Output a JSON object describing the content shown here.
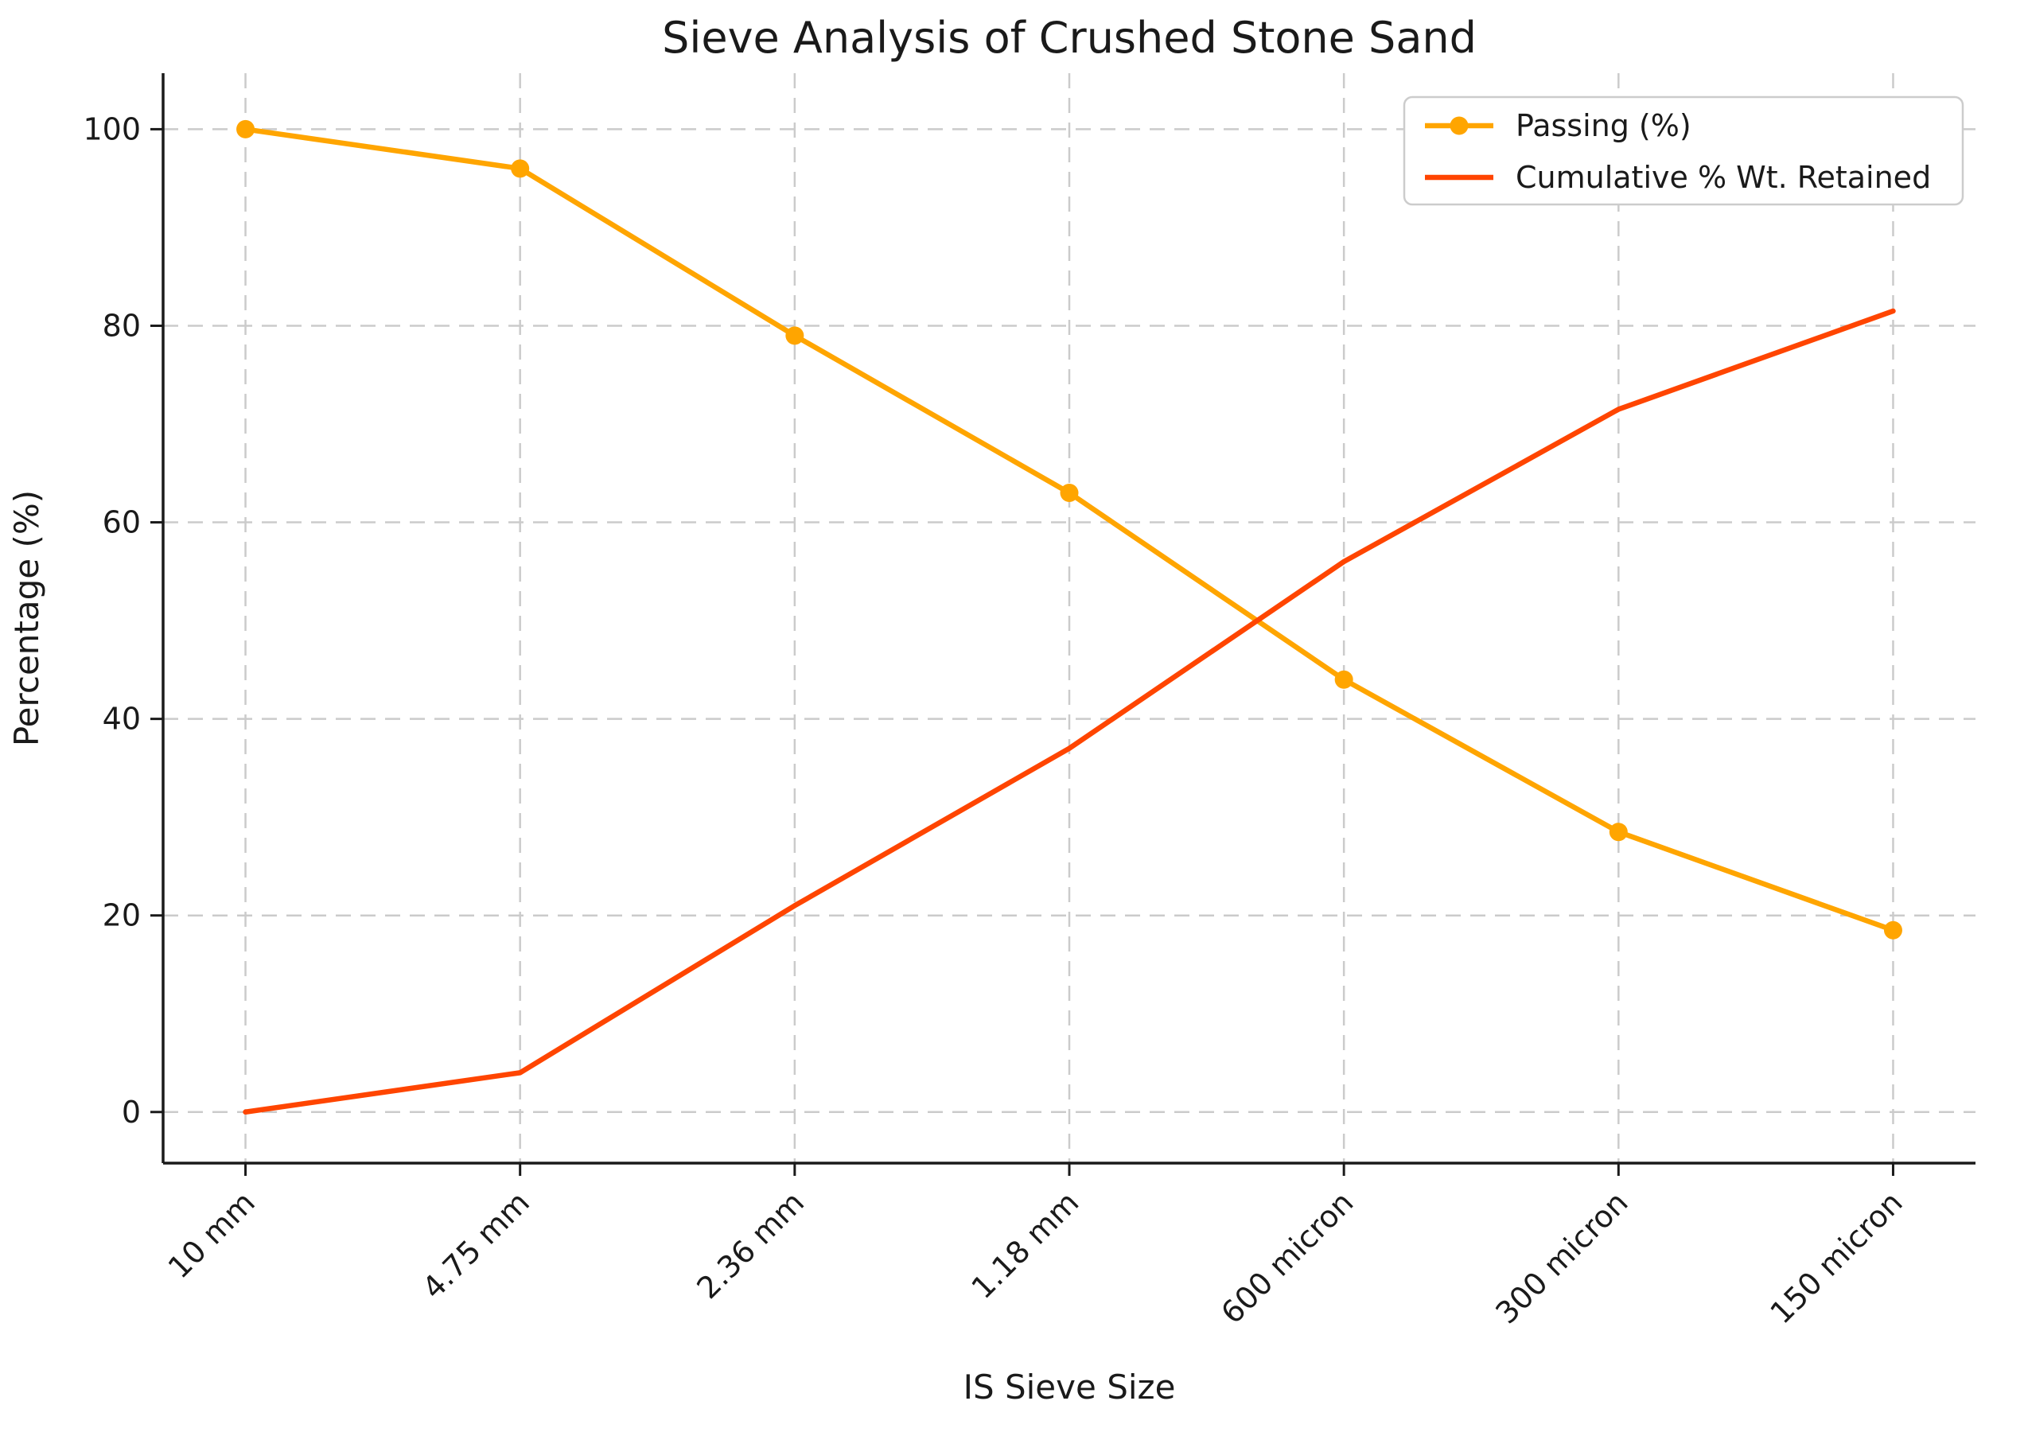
{
  "figure": {
    "background": "#ffffff"
  },
  "chart_data": {
    "type": "line",
    "title": "Sieve Analysis of Crushed Stone Sand",
    "xlabel": "IS Sieve Size",
    "ylabel": "Percentage (%)",
    "categories": [
      "10 mm",
      "4.75 mm",
      "2.36 mm",
      "1.18 mm",
      "600 micron",
      "300 micron",
      "150 micron"
    ],
    "series": [
      {
        "name": "Passing (%)",
        "values": [
          100,
          96,
          79,
          63,
          44,
          28.5,
          18.5
        ],
        "color": "#FFA500",
        "marker": "circle"
      },
      {
        "name": "Cumulative % Wt. Retained",
        "values": [
          0,
          4,
          21,
          37,
          56,
          71.5,
          81.5
        ],
        "color": "#FF4500",
        "marker": "none"
      }
    ],
    "yticks": [
      0,
      20,
      40,
      60,
      80,
      100
    ],
    "ylim": [
      -5.2,
      105.7
    ],
    "grid": true,
    "grid_style": "dashed",
    "legend_position": "upper right",
    "x_tick_rotation": 45,
    "axis_color": "#1a1a1a",
    "grid_color": "#cbcbcb",
    "text_color": "#1a1a1a",
    "legend_border_color": "#cccccc",
    "legend_background": "#ffffff"
  }
}
